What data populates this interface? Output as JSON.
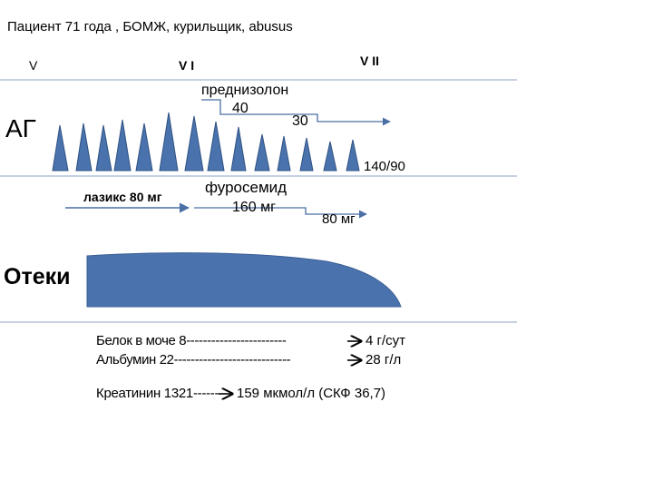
{
  "header": {
    "title": "Пациент 71 года , БОМЖ, курильщик, abusus"
  },
  "timeline": {
    "markers": [
      "V",
      "V I",
      "V II"
    ]
  },
  "bp_section": {
    "label": "АГ",
    "drug": "преднизолон",
    "dose_1": "40",
    "dose_2": "30",
    "target": "140/90",
    "colors": {
      "peak_fill": "#4a73ad",
      "peak_stroke": "#2f5183",
      "line": "#8fa3c4",
      "arrow": "#4a6fa5"
    }
  },
  "diuretic_section": {
    "lasix": "лазикс 80 мг",
    "furosemide": "фуросемид",
    "furosemide_dose_1": "160 мг",
    "furosemide_dose_2": "80 мг"
  },
  "edema_section": {
    "label": "Отеки",
    "color": "#4a73ad"
  },
  "labs": {
    "protein": "Белок в моче 8------------------------",
    "protein_result": "4 г/сут",
    "albumin": "Альбумин 22----------------------------",
    "albumin_result": "28 г/л",
    "creatinine": "Креатинин 1321------",
    "creatinine_result": "159  мкмол/л (СКФ 36,7)"
  }
}
